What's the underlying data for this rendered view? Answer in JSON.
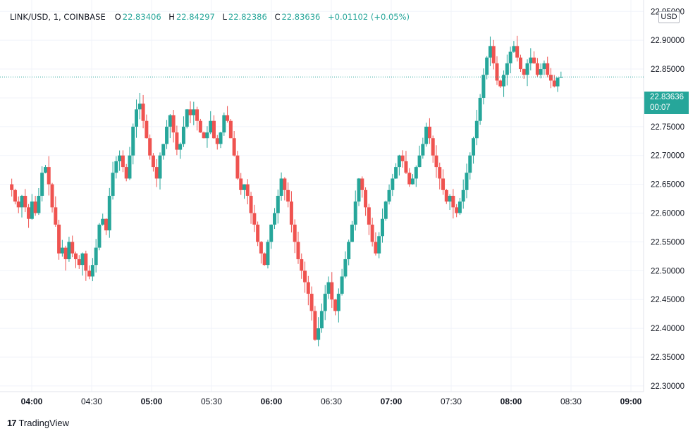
{
  "header": {
    "symbol": "LINK/USD, 1, COINBASE",
    "open_label": "O",
    "open": "22.83406",
    "high_label": "H",
    "high": "22.84297",
    "low_label": "L",
    "low": "22.82386",
    "close_label": "C",
    "close": "22.83636",
    "change": "+0.01102 (+0.05%)"
  },
  "axis": {
    "unit": "USD",
    "y_ticks": [
      "22.95000",
      "22.90000",
      "22.85000",
      "22.80000",
      "22.75000",
      "22.70000",
      "22.65000",
      "22.60000",
      "22.55000",
      "22.50000",
      "22.45000",
      "22.40000",
      "22.35000",
      "22.30000"
    ],
    "x_ticks": [
      "04:00",
      "04:30",
      "05:00",
      "05:30",
      "06:00",
      "06:30",
      "07:00",
      "07:30",
      "08:00",
      "08:30",
      "09:00"
    ]
  },
  "last_price": {
    "value": "22.83636",
    "countdown": "00:07"
  },
  "branding": {
    "logo_mark": "17",
    "name": "TradingView"
  },
  "colors": {
    "up": "#26a69a",
    "down": "#ef5350",
    "grid": "#f0f3fa"
  },
  "chart_data": {
    "type": "candlestick",
    "title": "LINK/USD, 1, COINBASE",
    "ylim": [
      22.3,
      23.0
    ],
    "y_label_unit": "USD",
    "x_tick_labels": [
      "04:00",
      "04:30",
      "05:00",
      "05:30",
      "06:00",
      "06:30",
      "07:00",
      "07:30",
      "08:00",
      "08:30",
      "09:00"
    ],
    "minutes_from_first_candle_per_30min_tick": 30,
    "first_candle_offset_min_before_04_00": 10,
    "close_series": [
      22.64,
      22.62,
      22.61,
      22.63,
      22.61,
      22.59,
      22.62,
      22.6,
      22.63,
      22.67,
      22.68,
      22.65,
      22.61,
      22.58,
      22.53,
      22.54,
      22.52,
      22.55,
      22.53,
      22.52,
      22.51,
      22.53,
      22.5,
      22.49,
      22.51,
      22.54,
      22.58,
      22.59,
      22.57,
      22.63,
      22.67,
      22.69,
      22.7,
      22.68,
      22.66,
      22.7,
      22.75,
      22.78,
      22.79,
      22.76,
      22.73,
      22.7,
      22.68,
      22.66,
      22.7,
      22.72,
      22.75,
      22.77,
      22.74,
      22.71,
      22.72,
      22.75,
      22.78,
      22.77,
      22.78,
      22.76,
      22.74,
      22.73,
      22.74,
      22.76,
      22.73,
      22.72,
      22.74,
      22.77,
      22.76,
      22.73,
      22.7,
      22.66,
      22.64,
      22.65,
      22.63,
      22.6,
      22.58,
      22.55,
      22.53,
      22.51,
      22.55,
      22.58,
      22.6,
      22.63,
      22.66,
      22.64,
      22.62,
      22.58,
      22.55,
      22.52,
      22.5,
      22.48,
      22.46,
      22.43,
      22.38,
      22.4,
      22.43,
      22.46,
      22.48,
      22.45,
      22.43,
      22.46,
      22.49,
      22.52,
      22.55,
      22.58,
      22.62,
      22.66,
      22.64,
      22.61,
      22.58,
      22.55,
      22.53,
      22.56,
      22.59,
      22.62,
      22.64,
      22.66,
      22.68,
      22.7,
      22.69,
      22.67,
      22.65,
      22.66,
      22.68,
      22.7,
      22.72,
      22.75,
      22.73,
      22.7,
      22.68,
      22.66,
      22.64,
      22.62,
      22.63,
      22.61,
      22.6,
      22.62,
      22.64,
      22.67,
      22.7,
      22.73,
      22.76,
      22.8,
      22.84,
      22.87,
      22.89,
      22.86,
      22.83,
      22.82,
      22.84,
      22.86,
      22.88,
      22.89,
      22.87,
      22.85,
      22.84,
      22.86,
      22.87,
      22.86,
      22.84,
      22.85,
      22.86,
      22.84,
      22.83,
      22.82,
      22.835,
      22.83636
    ]
  }
}
